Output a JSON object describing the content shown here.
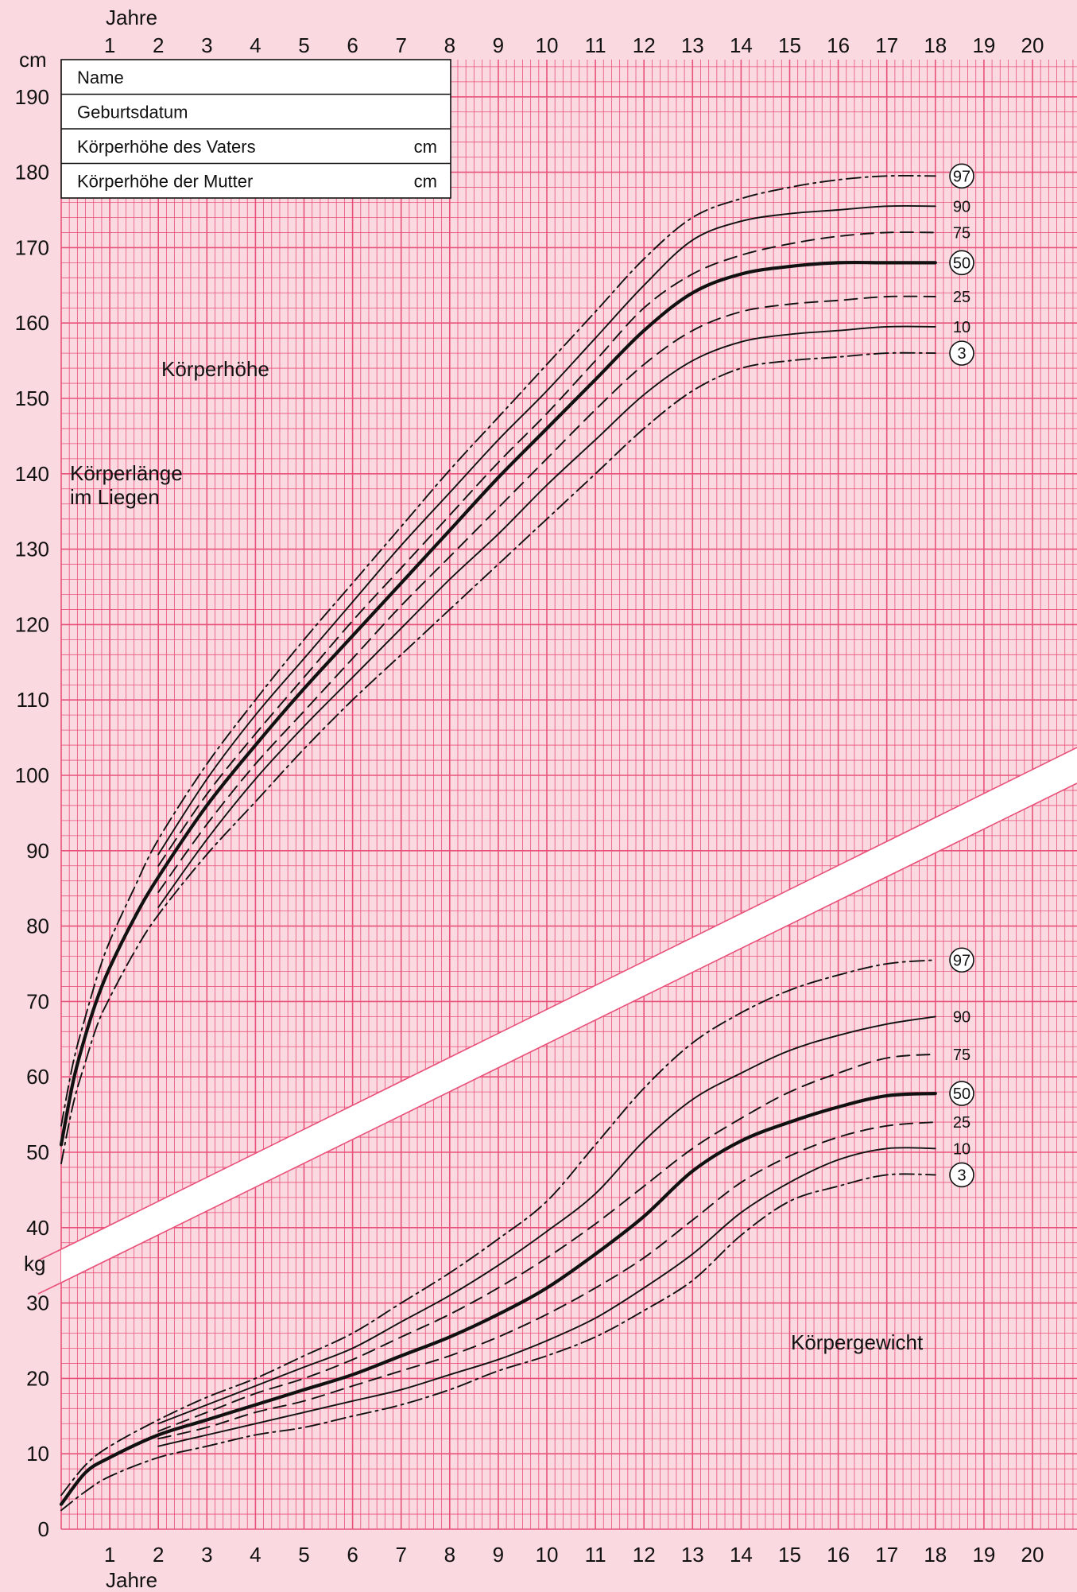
{
  "colors": {
    "background": "#FAD9E0",
    "grid": "#E8527A",
    "curve": "#111111",
    "band": "#FFFFFF"
  },
  "info_box": {
    "rows": [
      {
        "label": "Name",
        "unit": ""
      },
      {
        "label": "Geburtsdatum",
        "unit": ""
      },
      {
        "label": "Körperhöhe des Vaters",
        "unit": "cm"
      },
      {
        "label": "Körperhöhe der Mutter",
        "unit": "cm"
      }
    ]
  },
  "chart_data": {
    "type": "line",
    "x_axis": {
      "label_top": "Jahre",
      "label_bottom": "Jahre",
      "ticks": [
        "1",
        "2",
        "3",
        "4",
        "5",
        "6",
        "7",
        "8",
        "9",
        "10",
        "11",
        "12",
        "13",
        "14",
        "15",
        "16",
        "17",
        "18",
        "19",
        "20"
      ],
      "range": [
        0,
        21
      ],
      "unit": "years"
    },
    "y_axis": {
      "range": [
        0,
        195
      ],
      "ticks": [
        "0",
        "10",
        "20",
        "30",
        "40",
        "50",
        "60",
        "70",
        "80",
        "90",
        "100",
        "110",
        "120",
        "130",
        "140",
        "150",
        "160",
        "170",
        "180",
        "190"
      ],
      "unit_top": "cm",
      "unit_mid": "kg"
    },
    "grid": true,
    "annotations": {
      "height": "Körperhöhe",
      "length": "Körperlänge\nim Liegen",
      "weight": "Körpergewicht"
    },
    "height_series": [
      {
        "name": "97",
        "circled": true,
        "style": "dashdot",
        "weight": "normal",
        "x": [
          0,
          0.25,
          0.5,
          0.75,
          1,
          1.5,
          2,
          3,
          4,
          5,
          6,
          7,
          8,
          9,
          10,
          11,
          12,
          13,
          14,
          15,
          16,
          17,
          18
        ],
        "y": [
          53.5,
          62,
          68,
          73.5,
          78,
          85,
          91.5,
          101.5,
          110,
          118,
          125.5,
          133,
          140.5,
          147.5,
          154.5,
          161.5,
          168.5,
          174,
          176.5,
          178,
          179,
          179.5,
          179.5
        ]
      },
      {
        "name": "90",
        "circled": false,
        "style": "solid",
        "weight": "normal",
        "x": [
          2,
          3,
          4,
          5,
          6,
          7,
          8,
          9,
          10,
          11,
          12,
          13,
          14,
          15,
          16,
          17,
          18
        ],
        "y": [
          89.5,
          99.5,
          108,
          115.5,
          123,
          130.5,
          137.5,
          144.5,
          151,
          158,
          165,
          171,
          173.5,
          174.5,
          175,
          175.5,
          175.5
        ]
      },
      {
        "name": "75",
        "circled": false,
        "style": "dashed",
        "weight": "normal",
        "x": [
          2,
          3,
          4,
          5,
          6,
          7,
          8,
          9,
          10,
          11,
          12,
          13,
          14,
          15,
          16,
          17,
          18
        ],
        "y": [
          88,
          97.5,
          105.5,
          113,
          120.5,
          127.5,
          134.5,
          141.5,
          148,
          155,
          162,
          166.5,
          169,
          170.5,
          171.5,
          172,
          172
        ]
      },
      {
        "name": "50",
        "circled": true,
        "style": "solid",
        "weight": "bold",
        "x": [
          0,
          0.25,
          0.5,
          0.75,
          1,
          1.5,
          2,
          3,
          4,
          5,
          6,
          7,
          8,
          9,
          10,
          11,
          12,
          13,
          14,
          15,
          16,
          17,
          18
        ],
        "y": [
          51,
          59.5,
          65.5,
          70.5,
          74.5,
          81,
          86.5,
          96,
          104,
          111.5,
          118.5,
          125.5,
          132.5,
          139.5,
          146,
          152.5,
          159,
          164,
          166.5,
          167.5,
          168,
          168,
          168
        ]
      },
      {
        "name": "25",
        "circled": false,
        "style": "dashed",
        "weight": "normal",
        "x": [
          2,
          3,
          4,
          5,
          6,
          7,
          8,
          9,
          10,
          11,
          12,
          13,
          14,
          15,
          16,
          17,
          18
        ],
        "y": [
          84.5,
          93.5,
          101.5,
          108.5,
          115.5,
          122.5,
          129,
          135.5,
          142,
          148.5,
          154.5,
          159,
          161.5,
          162.5,
          163,
          163.5,
          163.5
        ]
      },
      {
        "name": "10",
        "circled": false,
        "style": "solid",
        "weight": "normal",
        "x": [
          2,
          3,
          4,
          5,
          6,
          7,
          8,
          9,
          10,
          11,
          12,
          13,
          14,
          15,
          16,
          17,
          18
        ],
        "y": [
          82.5,
          91.5,
          99.5,
          106.5,
          113,
          119.5,
          126,
          132,
          138.5,
          144.5,
          150.5,
          155,
          157.5,
          158.5,
          159,
          159.5,
          159.5
        ]
      },
      {
        "name": "3",
        "circled": true,
        "style": "dashdot",
        "weight": "normal",
        "x": [
          0,
          0.25,
          0.5,
          0.75,
          1,
          1.5,
          2,
          3,
          4,
          5,
          6,
          7,
          8,
          9,
          10,
          11,
          12,
          13,
          14,
          15,
          16,
          17,
          18
        ],
        "y": [
          48.5,
          56.5,
          62,
          67,
          70.5,
          76.5,
          81.5,
          89.5,
          96.5,
          103.5,
          110,
          116,
          122,
          128,
          134,
          140,
          146,
          151,
          154,
          155,
          155.5,
          156,
          156
        ]
      }
    ],
    "weight_series": [
      {
        "name": "97",
        "circled": true,
        "style": "dashdot",
        "weight": "normal",
        "x": [
          0,
          0.5,
          1,
          2,
          3,
          4,
          5,
          6,
          7,
          8,
          9,
          10,
          11,
          12,
          13,
          14,
          15,
          16,
          17,
          18
        ],
        "y": [
          4.5,
          8.5,
          11,
          14.5,
          17.5,
          20,
          23,
          26,
          30,
          34,
          38.5,
          43.5,
          51,
          58.5,
          64.5,
          68.5,
          71.5,
          73.5,
          75,
          75.5
        ]
      },
      {
        "name": "90",
        "circled": false,
        "style": "solid",
        "weight": "normal",
        "x": [
          2,
          3,
          4,
          5,
          6,
          7,
          8,
          9,
          10,
          11,
          12,
          13,
          14,
          15,
          16,
          17,
          18
        ],
        "y": [
          14,
          16.5,
          19,
          21.5,
          24,
          27.5,
          31,
          35,
          39.5,
          44.5,
          51.5,
          57,
          60.5,
          63.5,
          65.5,
          67,
          68
        ]
      },
      {
        "name": "75",
        "circled": false,
        "style": "dashed",
        "weight": "normal",
        "x": [
          2,
          3,
          4,
          5,
          6,
          7,
          8,
          9,
          10,
          11,
          12,
          13,
          14,
          15,
          16,
          17,
          18
        ],
        "y": [
          13,
          15.5,
          18,
          20,
          22.5,
          25.5,
          28.5,
          32,
          36,
          40.5,
          45.5,
          50.5,
          54.5,
          58,
          60.5,
          62.5,
          63
        ]
      },
      {
        "name": "50",
        "circled": true,
        "style": "solid",
        "weight": "bold",
        "x": [
          0,
          0.5,
          1,
          2,
          3,
          4,
          5,
          6,
          7,
          8,
          9,
          10,
          11,
          12,
          13,
          14,
          15,
          16,
          17,
          18
        ],
        "y": [
          3.3,
          7.5,
          9.5,
          12.5,
          14.5,
          16.5,
          18.5,
          20.5,
          23,
          25.5,
          28.5,
          32,
          36.5,
          41.5,
          47.5,
          51.5,
          54,
          56,
          57.5,
          57.8
        ]
      },
      {
        "name": "25",
        "circled": false,
        "style": "dashed",
        "weight": "normal",
        "x": [
          2,
          3,
          4,
          5,
          6,
          7,
          8,
          9,
          10,
          11,
          12,
          13,
          14,
          15,
          16,
          17,
          18
        ],
        "y": [
          12,
          13.5,
          15.5,
          17,
          19,
          21,
          23,
          25.5,
          28.5,
          32,
          36,
          41,
          46,
          49.5,
          52,
          53.5,
          54
        ]
      },
      {
        "name": "10",
        "circled": false,
        "style": "solid",
        "weight": "normal",
        "x": [
          2,
          3,
          4,
          5,
          6,
          7,
          8,
          9,
          10,
          11,
          12,
          13,
          14,
          15,
          16,
          17,
          18
        ],
        "y": [
          11,
          12.5,
          14,
          15.5,
          17,
          18.5,
          20.5,
          22.5,
          25,
          28,
          32,
          36.5,
          42,
          46,
          49,
          50.5,
          50.5
        ]
      },
      {
        "name": "3",
        "circled": true,
        "style": "dashdot",
        "weight": "normal",
        "x": [
          0,
          0.5,
          1,
          2,
          3,
          4,
          5,
          6,
          7,
          8,
          9,
          10,
          11,
          12,
          13,
          14,
          15,
          16,
          17,
          18
        ],
        "y": [
          2.5,
          5,
          7,
          9.5,
          11,
          12.5,
          13.5,
          15,
          16.5,
          18.5,
          21,
          23,
          25.5,
          29,
          33,
          39,
          43.5,
          45.5,
          47,
          47
        ]
      }
    ]
  }
}
